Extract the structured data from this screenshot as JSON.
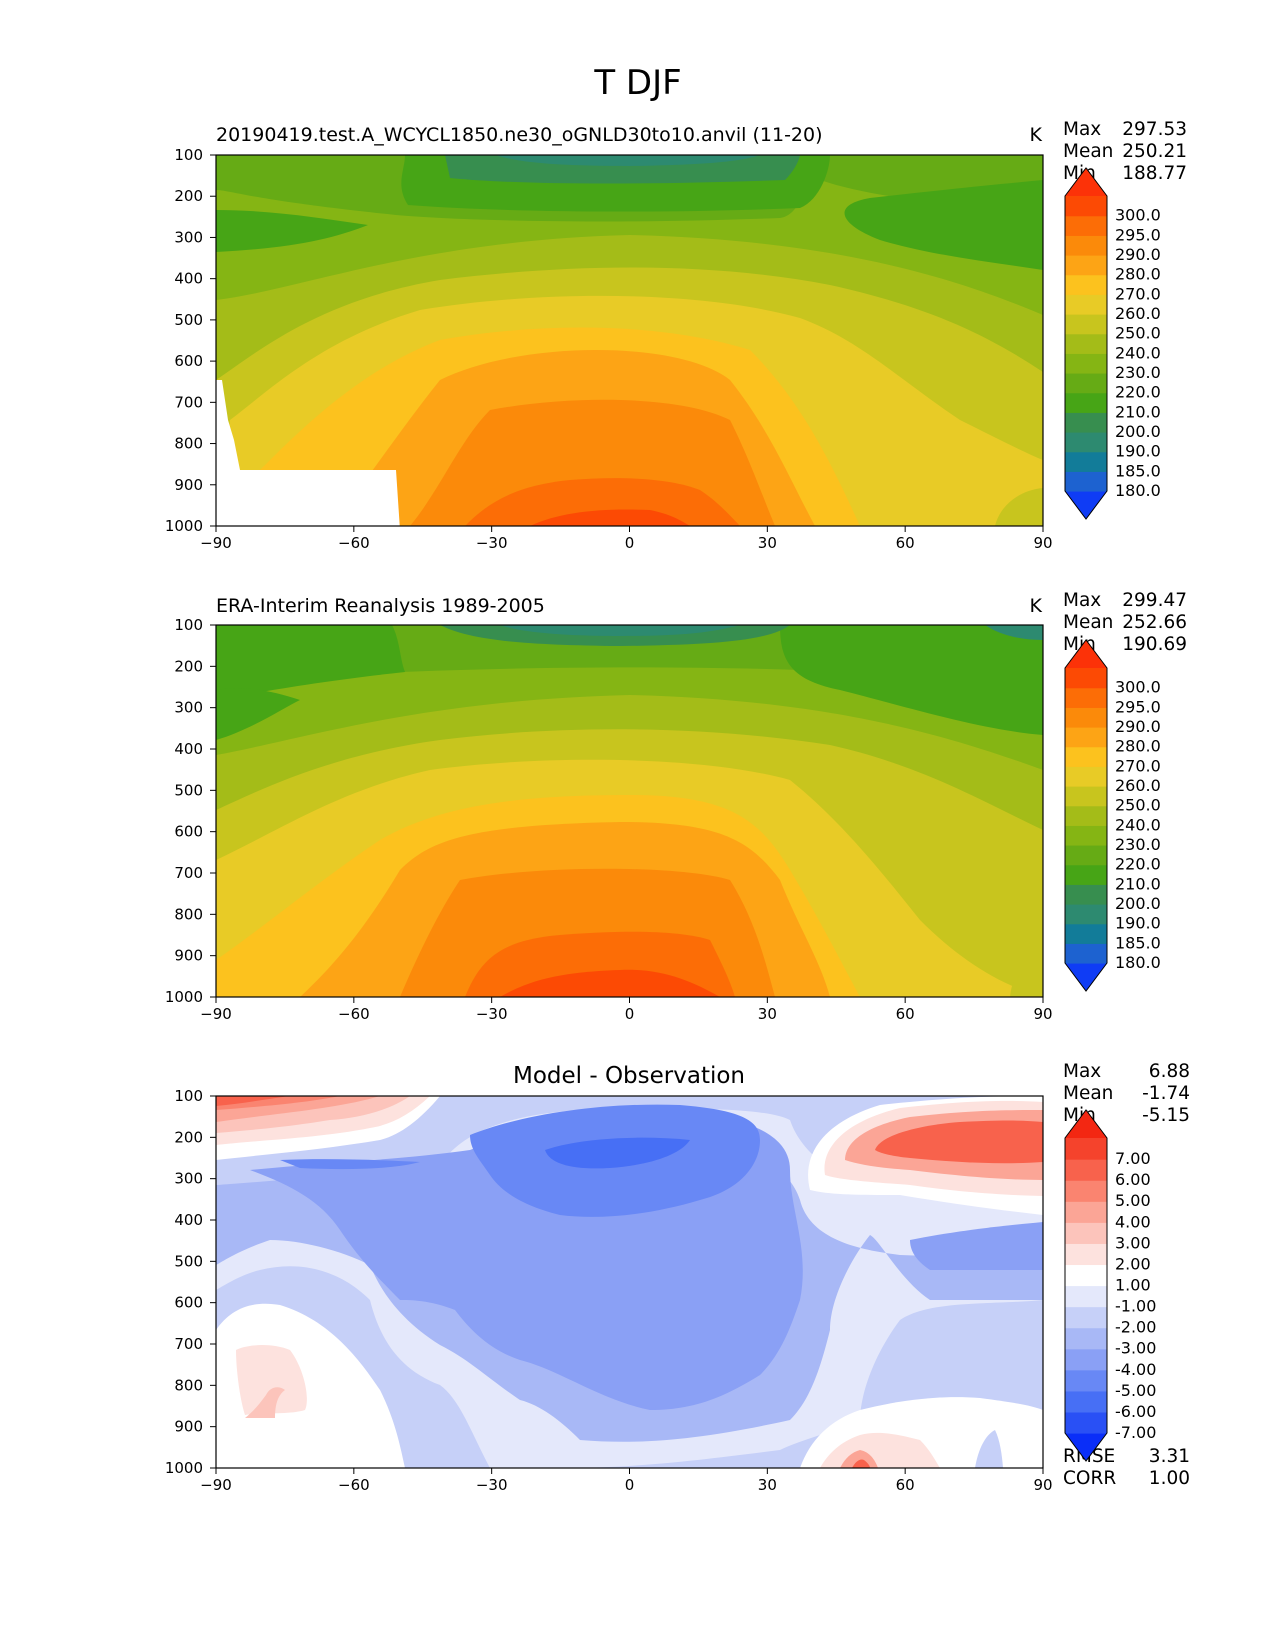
{
  "figure": {
    "title": "T DJF"
  },
  "chart_data": [
    {
      "type": "contour",
      "panel": "test",
      "title": "20190419.test.A_WCYCL1850.ne30_oGNLD30to10.anvil (11-20)",
      "units": "K",
      "stats": {
        "max_label": "Max",
        "max": "297.53",
        "mean_label": "Mean",
        "mean": "250.21",
        "min_label": "Min",
        "min": "188.77"
      },
      "x_ticks": [
        "−90",
        "−60",
        "−30",
        "0",
        "30",
        "60",
        "90"
      ],
      "y_ticks": [
        "100",
        "200",
        "300",
        "400",
        "500",
        "600",
        "700",
        "800",
        "900",
        "1000"
      ],
      "xlim": [
        -90,
        90
      ],
      "ylim": [
        1000,
        100
      ],
      "levels": [
        "180.0",
        "185.0",
        "190.0",
        "200.0",
        "210.0",
        "220.0",
        "230.0",
        "240.0",
        "250.0",
        "260.0",
        "270.0",
        "280.0",
        "290.0",
        "295.0",
        "300.0"
      ],
      "colors": [
        "#0f3cf5",
        "#1d62d0",
        "#127c99",
        "#2d8a70",
        "#378e4f",
        "#47a516",
        "#66ab15",
        "#85b514",
        "#a4bc18",
        "#c8c51e",
        "#e8cb26",
        "#fcc21e",
        "#fda415",
        "#fb8a0a",
        "#fc6d06",
        "#fc4a04",
        "#fc3208"
      ]
    },
    {
      "type": "contour",
      "panel": "reference",
      "title": "ERA-Interim Reanalysis 1989-2005",
      "units": "K",
      "stats": {
        "max_label": "Max",
        "max": "299.47",
        "mean_label": "Mean",
        "mean": "252.66",
        "min_label": "Min",
        "min": "190.69"
      },
      "x_ticks": [
        "−90",
        "−60",
        "−30",
        "0",
        "30",
        "60",
        "90"
      ],
      "y_ticks": [
        "100",
        "200",
        "300",
        "400",
        "500",
        "600",
        "700",
        "800",
        "900",
        "1000"
      ],
      "xlim": [
        -90,
        90
      ],
      "ylim": [
        1000,
        100
      ],
      "levels": [
        "180.0",
        "185.0",
        "190.0",
        "200.0",
        "210.0",
        "220.0",
        "230.0",
        "240.0",
        "250.0",
        "260.0",
        "270.0",
        "280.0",
        "290.0",
        "295.0",
        "300.0"
      ],
      "colors": [
        "#0f3cf5",
        "#1d62d0",
        "#127c99",
        "#2d8a70",
        "#378e4f",
        "#47a516",
        "#66ab15",
        "#85b514",
        "#a4bc18",
        "#c8c51e",
        "#e8cb26",
        "#fcc21e",
        "#fda415",
        "#fb8a0a",
        "#fc6d06",
        "#fc4a04",
        "#fc3208"
      ]
    },
    {
      "type": "contour",
      "panel": "difference",
      "title": "Model - Observation",
      "units": "",
      "stats": {
        "max_label": "Max",
        "max": "6.88",
        "mean_label": "Mean",
        "mean": "-1.74",
        "min_label": "Min",
        "min": "-5.15",
        "rmse_label": "RMSE",
        "rmse": "3.31",
        "corr_label": "CORR",
        "corr": "1.00"
      },
      "x_ticks": [
        "−90",
        "−60",
        "−30",
        "0",
        "30",
        "60",
        "90"
      ],
      "y_ticks": [
        "100",
        "200",
        "300",
        "400",
        "500",
        "600",
        "700",
        "800",
        "900",
        "1000"
      ],
      "xlim": [
        -90,
        90
      ],
      "ylim": [
        1000,
        100
      ],
      "levels": [
        "-7.00",
        "-6.00",
        "-5.00",
        "-4.00",
        "-3.00",
        "-2.00",
        "-1.00",
        "1.00",
        "2.00",
        "3.00",
        "4.00",
        "5.00",
        "6.00",
        "7.00"
      ],
      "colors": [
        "#0a2ef8",
        "#2950f5",
        "#476ff5",
        "#6888f5",
        "#8aa0f5",
        "#a8b8f6",
        "#c6d0f8",
        "#e4e8fb",
        "#ffffff",
        "#fde2de",
        "#fcc4bb",
        "#fba596",
        "#fa8470",
        "#f8624c",
        "#f5432c",
        "#f32712"
      ]
    }
  ]
}
